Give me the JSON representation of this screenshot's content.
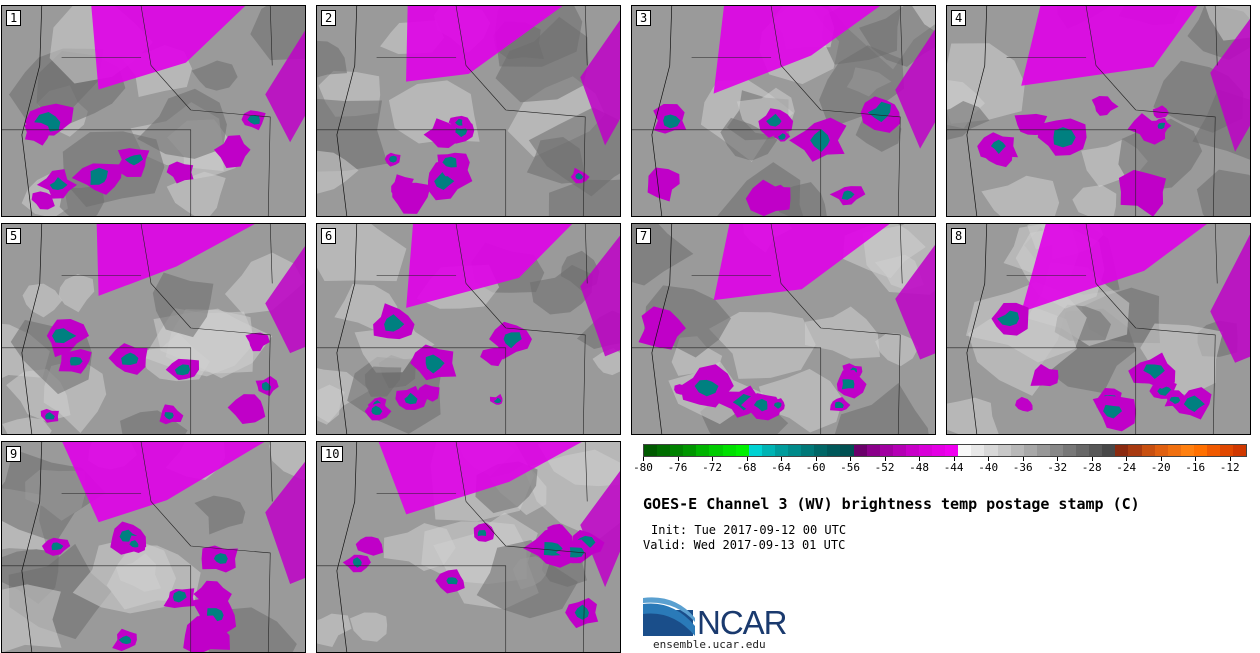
{
  "panels": [
    {
      "label": "1"
    },
    {
      "label": "2"
    },
    {
      "label": "3"
    },
    {
      "label": "4"
    },
    {
      "label": "5"
    },
    {
      "label": "6"
    },
    {
      "label": "7"
    },
    {
      "label": "8"
    },
    {
      "label": "9"
    },
    {
      "label": "10"
    }
  ],
  "colorbar": {
    "tick_labels": [
      "-80",
      "-76",
      "-72",
      "-68",
      "-64",
      "-60",
      "-56",
      "-52",
      "-48",
      "-44",
      "-40",
      "-36",
      "-32",
      "-28",
      "-24",
      "-20",
      "-16",
      "-12"
    ],
    "min": -80,
    "max": -10,
    "step": 2,
    "colors": [
      "#005a00",
      "#006e00",
      "#008200",
      "#009600",
      "#00b400",
      "#00cc00",
      "#00e000",
      "#00f000",
      "#00d2d2",
      "#00b4b4",
      "#009c9c",
      "#008a8a",
      "#007878",
      "#006666",
      "#00585a",
      "#005052",
      "#6a006a",
      "#8a008a",
      "#a000a0",
      "#b400b4",
      "#c800c8",
      "#d800d8",
      "#e400e4",
      "#f000f0",
      "#f8f8f8",
      "#e8e8e8",
      "#d8d8d8",
      "#c8c8c8",
      "#b8b8b8",
      "#a8a8a8",
      "#989898",
      "#888888",
      "#787878",
      "#686868",
      "#585858",
      "#484848",
      "#8a2a10",
      "#a83a10",
      "#c85010",
      "#e06010",
      "#f07010",
      "#ff8010",
      "#ff7000",
      "#f05a00",
      "#e04800",
      "#d03800"
    ]
  },
  "title": "GOES-E Channel 3 (WV) brightness temp postage stamp (C)",
  "init": "Init: Tue 2017-09-12 00 UTC",
  "valid": "Valid: Wed 2017-09-13 01 UTC",
  "logo": {
    "text": "NCAR",
    "url_text": "ensemble.ucar.edu",
    "brand_color": "#1a3a6e",
    "arc_color": "#2a7ab8"
  },
  "map_colors": {
    "background_gray": "#9a9a9a",
    "light_gray": "#d0d0d0",
    "dark_gray": "#6e6e6e",
    "magenta": "#c000c8",
    "magenta_bright": "#e000e8",
    "teal": "#008080"
  }
}
